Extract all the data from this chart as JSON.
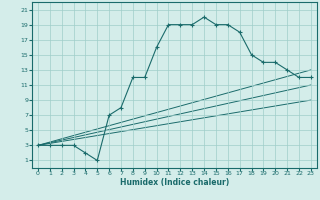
{
  "title": "",
  "xlabel": "Humidex (Indice chaleur)",
  "bg_color": "#d4edea",
  "line_color": "#1a6b6b",
  "marker_color": "#1a6b6b",
  "xlim": [
    -0.5,
    23.5
  ],
  "ylim": [
    0.0,
    22.0
  ],
  "xticks": [
    0,
    1,
    2,
    3,
    4,
    5,
    6,
    7,
    8,
    9,
    10,
    11,
    12,
    13,
    14,
    15,
    16,
    17,
    18,
    19,
    20,
    21,
    22,
    23
  ],
  "yticks": [
    1,
    3,
    5,
    7,
    9,
    11,
    13,
    15,
    17,
    19,
    21
  ],
  "grid_color": "#a0ceca",
  "series_main": {
    "x": [
      0,
      1,
      2,
      3,
      4,
      5,
      6,
      7,
      8,
      9,
      10,
      11,
      12,
      13,
      14,
      15,
      16,
      17,
      18,
      19,
      20,
      21,
      22,
      23
    ],
    "y": [
      3,
      3,
      3,
      3,
      2,
      1,
      7,
      8,
      12,
      12,
      16,
      19,
      19,
      19,
      20,
      19,
      19,
      18,
      15,
      14,
      14,
      13,
      12,
      12
    ]
  },
  "series_lines": [
    {
      "x": [
        0,
        23
      ],
      "y": [
        3,
        13
      ]
    },
    {
      "x": [
        0,
        23
      ],
      "y": [
        3,
        11
      ]
    },
    {
      "x": [
        0,
        23
      ],
      "y": [
        3,
        9
      ]
    }
  ]
}
